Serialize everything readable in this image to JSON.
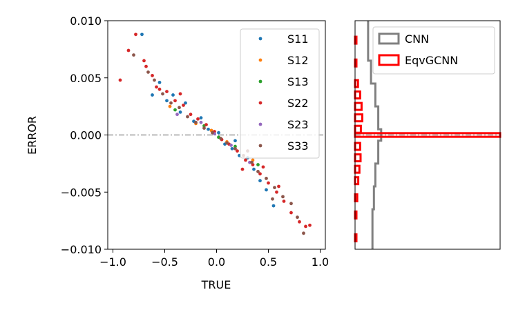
{
  "chart_data": [
    {
      "type": "scatter",
      "xlabel": "TRUE",
      "ylabel": "ERROR",
      "xlim": [
        -1.0,
        1.0
      ],
      "ylim": [
        -0.01,
        0.01
      ],
      "x_tick_labels": [
        "−1.0",
        "−0.5",
        "0.0",
        "0.5",
        "1.0"
      ],
      "x_ticks": [
        -1.0,
        -0.5,
        0.0,
        0.5,
        1.0
      ],
      "y_tick_labels": [
        "0.010",
        "0.005",
        "0.000",
        "−0.005",
        "−0.010"
      ],
      "y_ticks": [
        0.01,
        0.005,
        0.0,
        -0.005,
        -0.01
      ],
      "reference_line": {
        "y": 0.0,
        "style": "dash-dot",
        "color": "#7f7f7f"
      },
      "legend_position": "top-right",
      "series": [
        {
          "name": "S11",
          "color": "#1f77b4",
          "points": [
            [
              -0.72,
              0.0088
            ],
            [
              -0.55,
              0.0046
            ],
            [
              -0.48,
              0.003
            ],
            [
              -0.42,
              0.0035
            ],
            [
              -0.35,
              0.002
            ],
            [
              -0.3,
              0.0028
            ],
            [
              -0.22,
              0.0012
            ],
            [
              -0.15,
              0.0015
            ],
            [
              -0.08,
              0.0005
            ],
            [
              0.02,
              0.0002
            ],
            [
              0.08,
              -0.0008
            ],
            [
              0.15,
              -0.0012
            ],
            [
              0.22,
              -0.0018
            ],
            [
              0.3,
              -0.002
            ],
            [
              0.36,
              -0.003
            ],
            [
              0.42,
              -0.004
            ],
            [
              0.48,
              -0.0048
            ],
            [
              0.55,
              -0.0062
            ],
            [
              0.18,
              -0.0005
            ],
            [
              -0.62,
              0.0035
            ]
          ]
        },
        {
          "name": "S12",
          "color": "#ff7f0e",
          "points": [
            [
              -0.45,
              0.0025
            ],
            [
              -0.2,
              0.001
            ],
            [
              0.1,
              -0.0006
            ],
            [
              0.35,
              -0.0022
            ],
            [
              -0.05,
              0.0004
            ]
          ]
        },
        {
          "name": "S13",
          "color": "#2ca02c",
          "points": [
            [
              -0.4,
              0.0022
            ],
            [
              -0.12,
              0.0008
            ],
            [
              0.18,
              -0.001
            ],
            [
              0.4,
              -0.0026
            ],
            [
              0.02,
              -0.0002
            ]
          ]
        },
        {
          "name": "S22",
          "color": "#d62728",
          "points": [
            [
              -0.93,
              0.0048
            ],
            [
              -0.85,
              0.0074
            ],
            [
              -0.78,
              0.0088
            ],
            [
              -0.7,
              0.0065
            ],
            [
              -0.62,
              0.0052
            ],
            [
              -0.55,
              0.004
            ],
            [
              -0.48,
              0.0038
            ],
            [
              -0.4,
              0.003
            ],
            [
              -0.32,
              0.0026
            ],
            [
              -0.25,
              0.0018
            ],
            [
              -0.18,
              0.0014
            ],
            [
              -0.1,
              0.0009
            ],
            [
              -0.02,
              0.0003
            ],
            [
              0.05,
              -0.0004
            ],
            [
              0.12,
              -0.0008
            ],
            [
              0.2,
              -0.0014
            ],
            [
              0.28,
              -0.0022
            ],
            [
              0.35,
              -0.0026
            ],
            [
              0.42,
              -0.0034
            ],
            [
              0.5,
              -0.0042
            ],
            [
              0.58,
              -0.005
            ],
            [
              0.65,
              -0.0058
            ],
            [
              0.72,
              -0.0068
            ],
            [
              0.8,
              -0.0076
            ],
            [
              0.86,
              -0.008
            ],
            [
              0.9,
              -0.0079
            ],
            [
              -0.58,
              0.0042
            ],
            [
              -0.35,
              0.0036
            ],
            [
              0.25,
              -0.003
            ],
            [
              0.45,
              -0.0028
            ],
            [
              0.6,
              -0.0045
            ],
            [
              -0.68,
              0.006
            ]
          ]
        },
        {
          "name": "S23",
          "color": "#9467bd",
          "points": [
            [
              -0.38,
              0.0018
            ],
            [
              -0.15,
              0.0011
            ],
            [
              0.14,
              -0.0009
            ],
            [
              0.32,
              -0.0024
            ],
            [
              -0.02,
              0.0001
            ]
          ]
        },
        {
          "name": "S33",
          "color": "#8c564b",
          "points": [
            [
              -0.8,
              0.007
            ],
            [
              -0.66,
              0.0055
            ],
            [
              -0.52,
              0.0036
            ],
            [
              -0.44,
              0.0028
            ],
            [
              -0.36,
              0.0024
            ],
            [
              -0.28,
              0.0016
            ],
            [
              -0.2,
              0.0011
            ],
            [
              -0.12,
              0.0006
            ],
            [
              -0.04,
              0.0002
            ],
            [
              0.04,
              -0.0003
            ],
            [
              0.1,
              -0.0007
            ],
            [
              0.18,
              -0.0012
            ],
            [
              0.26,
              -0.0018
            ],
            [
              0.34,
              -0.0024
            ],
            [
              0.4,
              -0.0032
            ],
            [
              0.48,
              -0.0038
            ],
            [
              0.56,
              -0.0046
            ],
            [
              0.64,
              -0.0054
            ],
            [
              0.72,
              -0.006
            ],
            [
              0.78,
              -0.0072
            ],
            [
              0.84,
              -0.0086
            ],
            [
              0.54,
              -0.0056
            ],
            [
              0.3,
              -0.0014
            ],
            [
              -0.6,
              0.0048
            ]
          ]
        }
      ]
    },
    {
      "type": "histogram",
      "orientation": "horizontal",
      "ylim": [
        -0.01,
        0.01
      ],
      "reference_line": {
        "y": 0.0,
        "style": "dash-dot",
        "color": "#7f7f7f"
      },
      "legend_position": "top-right",
      "series": [
        {
          "name": "CNN",
          "color": "#808080",
          "style": "step",
          "bins": [
            {
              "y0": -0.01,
              "y1": -0.0065,
              "count": 0.12
            },
            {
              "y0": -0.0065,
              "y1": -0.0045,
              "count": 0.13
            },
            {
              "y0": -0.0045,
              "y1": -0.0025,
              "count": 0.14
            },
            {
              "y0": -0.0025,
              "y1": -0.0005,
              "count": 0.16
            },
            {
              "y0": -0.0005,
              "y1": 0.0005,
              "count": 0.18
            },
            {
              "y0": 0.0005,
              "y1": 0.0025,
              "count": 0.16
            },
            {
              "y0": 0.0025,
              "y1": 0.0045,
              "count": 0.14
            },
            {
              "y0": 0.0045,
              "y1": 0.0065,
              "count": 0.11
            },
            {
              "y0": 0.0065,
              "y1": 0.01,
              "count": 0.09
            }
          ]
        },
        {
          "name": "EqvGCNN",
          "color": "#ff0000",
          "style": "step",
          "spike": {
            "y0": -0.0001,
            "y1": 0.0001,
            "count": 1.0
          },
          "bins": [
            {
              "y": 0.0083,
              "count": 0.005
            },
            {
              "y": 0.0063,
              "count": 0.008
            },
            {
              "y": 0.0045,
              "count": 0.02
            },
            {
              "y": 0.0035,
              "count": 0.035
            },
            {
              "y": 0.0025,
              "count": 0.045
            },
            {
              "y": 0.0015,
              "count": 0.05
            },
            {
              "y": 0.0005,
              "count": 0.04
            },
            {
              "y": -0.001,
              "count": 0.035
            },
            {
              "y": -0.002,
              "count": 0.038
            },
            {
              "y": -0.003,
              "count": 0.03
            },
            {
              "y": -0.004,
              "count": 0.022
            },
            {
              "y": -0.0055,
              "count": 0.015
            },
            {
              "y": -0.007,
              "count": 0.008
            },
            {
              "y": -0.009,
              "count": 0.004
            }
          ]
        }
      ]
    }
  ]
}
